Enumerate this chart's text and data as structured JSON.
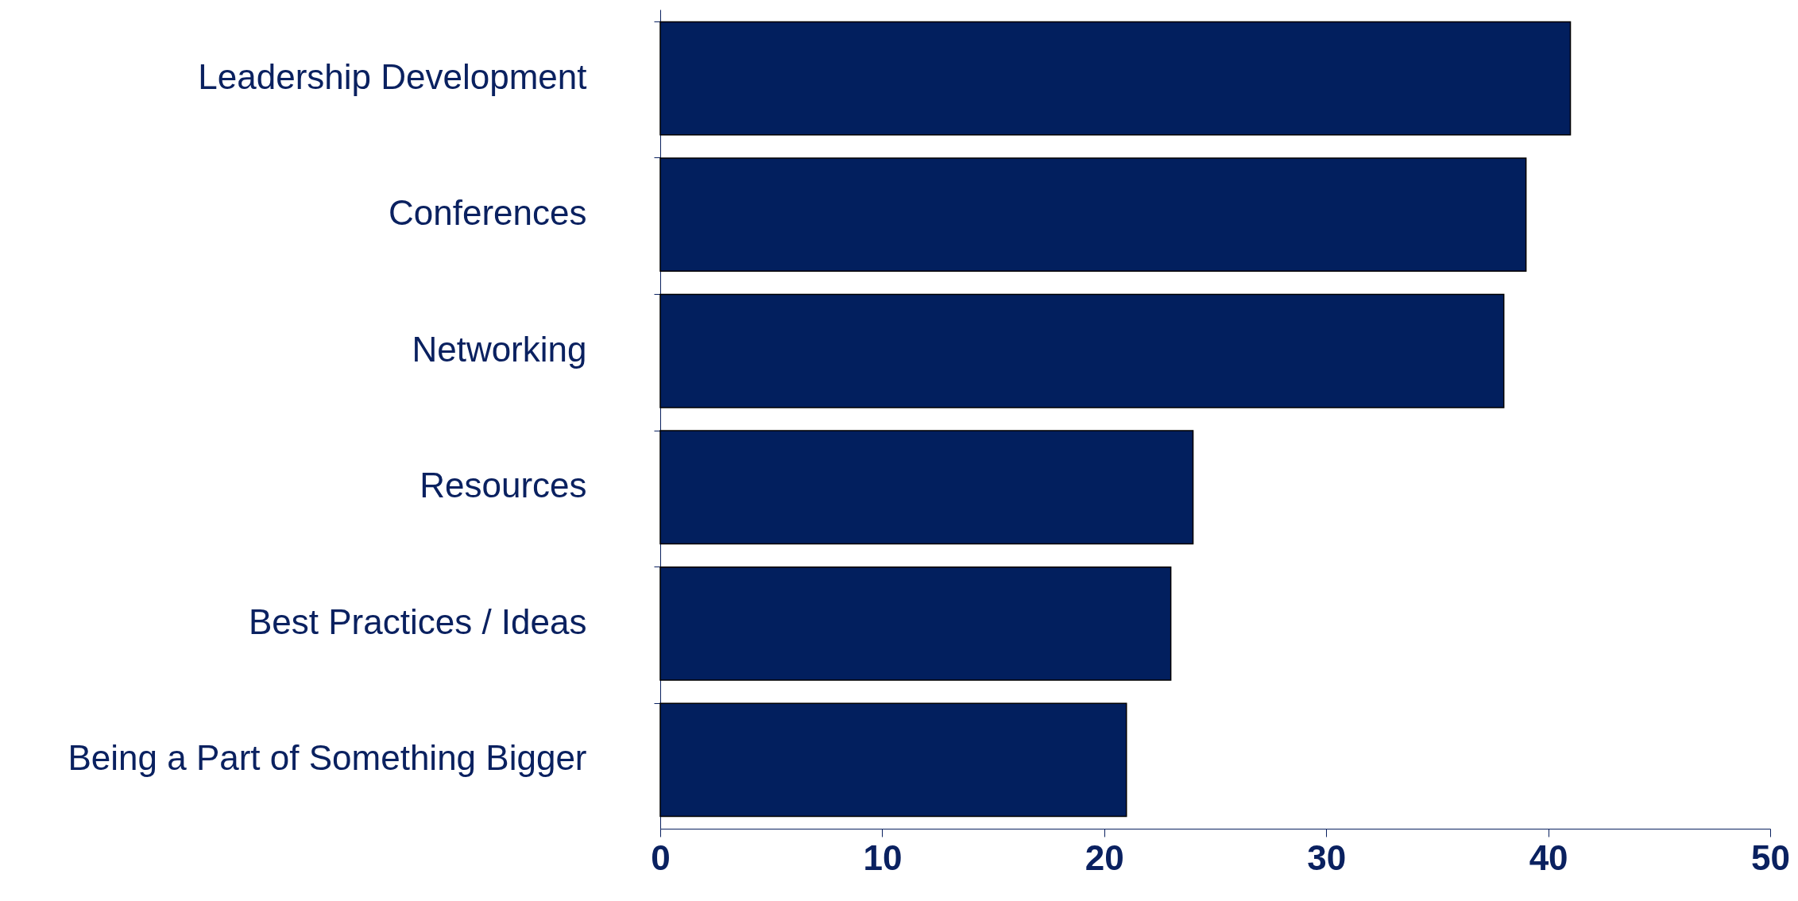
{
  "chart_data": {
    "type": "bar",
    "orientation": "horizontal",
    "categories": [
      "Leadership Development",
      "Conferences",
      "Networking",
      "Resources",
      "Best Practices / Ideas",
      "Being a Part of Something Bigger"
    ],
    "values": [
      41,
      39,
      38,
      24,
      23,
      21
    ],
    "color": "#021f5e",
    "xlim": [
      0,
      50
    ],
    "xticks": [
      0,
      10,
      20,
      30,
      40,
      50
    ],
    "grid": false
  }
}
